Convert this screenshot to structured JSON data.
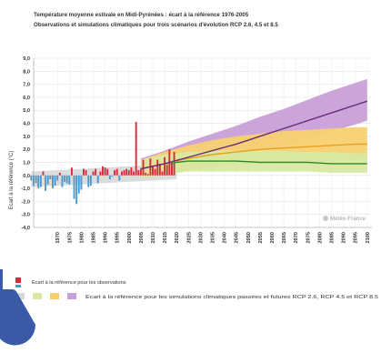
{
  "chart_data": {
    "type": "area",
    "title": "Température moyenne estivale en Midi-Pyrénées : écart à la référence 1976-2005",
    "subtitle": "Observations et simulations climatiques pour trois scénarios d'évolution RCP 2.6, 4.5 et 8.5",
    "ylabel": "Ecart à la référence (°C)",
    "xlabel": "",
    "xlim": [
      1960,
      2102
    ],
    "ylim": [
      -4,
      9
    ],
    "x_ticks": [
      1970,
      1975,
      1980,
      1985,
      1990,
      1995,
      2000,
      2005,
      2010,
      2015,
      2020,
      2025,
      2030,
      2035,
      2040,
      2045,
      2050,
      2055,
      2060,
      2065,
      2070,
      2075,
      2080,
      2085,
      2090,
      2095,
      2100
    ],
    "y_ticks": [
      "9,0",
      "8,0",
      "7,0",
      "6,0",
      "5,0",
      "4,0",
      "3,0",
      "2,0",
      "1,0",
      "0,0",
      "-1,0",
      "-2,0",
      "-3,0",
      "-4,0"
    ],
    "grid": true,
    "observations": {
      "years": [
        1959,
        1960,
        1961,
        1962,
        1963,
        1964,
        1965,
        1966,
        1967,
        1968,
        1969,
        1970,
        1971,
        1972,
        1973,
        1974,
        1975,
        1976,
        1977,
        1978,
        1979,
        1980,
        1981,
        1982,
        1983,
        1984,
        1985,
        1986,
        1987,
        1988,
        1989,
        1990,
        1991,
        1992,
        1993,
        1994,
        1995,
        1996,
        1997,
        1998,
        1999,
        2000,
        2001,
        2002,
        2003,
        2004,
        2005,
        2006,
        2007,
        2008,
        2009,
        2010,
        2011,
        2012,
        2013,
        2014,
        2015,
        2016,
        2017,
        2018,
        2019
      ],
      "values": [
        -0.4,
        -0.8,
        -0.6,
        -1.0,
        -0.9,
        0.3,
        -1.2,
        -0.7,
        -0.3,
        -1.0,
        -0.8,
        -0.4,
        0.2,
        -0.9,
        -0.5,
        -0.6,
        -0.7,
        0.6,
        -1.8,
        -2.2,
        -1.4,
        -1.1,
        0.5,
        0.4,
        -0.9,
        -0.8,
        0.3,
        0.5,
        -0.6,
        0.3,
        0.7,
        0.6,
        0.5,
        -0.3,
        -0.1,
        0.4,
        0.5,
        -0.4,
        0.3,
        0.4,
        0.5,
        0.4,
        0.6,
        0.3,
        4.1,
        0.4,
        0.5,
        1.2,
        0.2,
        0.1,
        1.3,
        0.7,
        0.5,
        1.2,
        0.9,
        0.3,
        1.4,
        0.8,
        2.0,
        1.1,
        1.8
      ]
    },
    "reference_envelope": {
      "x": [
        1959,
        2020
      ],
      "low": [
        -0.9,
        -0.3
      ],
      "high": [
        0.3,
        0.9
      ]
    },
    "series": [
      {
        "name": "RCP 2.6",
        "color": "#2a8a2a",
        "x": [
          2005,
          2015,
          2025,
          2035,
          2045,
          2055,
          2065,
          2075,
          2085,
          2095,
          2100
        ],
        "values": [
          0.5,
          0.9,
          1.1,
          1.1,
          1.1,
          1.0,
          1.0,
          1.0,
          0.9,
          0.9,
          0.9
        ],
        "low": [
          -0.2,
          0.1,
          0.3,
          0.3,
          0.3,
          0.3,
          0.3,
          0.3,
          0.2,
          0.2,
          0.2
        ],
        "high": [
          1.2,
          1.6,
          1.8,
          1.9,
          1.9,
          1.9,
          1.9,
          1.8,
          1.8,
          1.7,
          1.7
        ]
      },
      {
        "name": "RCP 4.5",
        "color": "#e8a020",
        "x": [
          2005,
          2015,
          2025,
          2035,
          2045,
          2055,
          2065,
          2075,
          2085,
          2095,
          2100
        ],
        "values": [
          0.5,
          0.9,
          1.3,
          1.6,
          1.8,
          2.0,
          2.1,
          2.2,
          2.3,
          2.4,
          2.4
        ],
        "low": [
          -0.2,
          0.1,
          0.4,
          0.6,
          0.8,
          0.9,
          1.0,
          1.1,
          1.2,
          1.2,
          1.2
        ],
        "high": [
          1.2,
          1.8,
          2.3,
          2.7,
          3.0,
          3.2,
          3.4,
          3.5,
          3.6,
          3.7,
          3.7
        ]
      },
      {
        "name": "RCP 8.5",
        "color": "#6a2a78",
        "x": [
          2005,
          2015,
          2025,
          2035,
          2045,
          2055,
          2065,
          2075,
          2085,
          2095,
          2100
        ],
        "values": [
          0.5,
          0.9,
          1.4,
          1.9,
          2.4,
          3.0,
          3.6,
          4.2,
          4.8,
          5.4,
          5.7
        ],
        "low": [
          -0.2,
          0.1,
          0.5,
          0.9,
          1.3,
          1.8,
          2.3,
          2.9,
          3.4,
          3.9,
          4.2
        ],
        "high": [
          1.3,
          1.9,
          2.6,
          3.2,
          3.8,
          4.5,
          5.1,
          5.8,
          6.5,
          7.1,
          7.4
        ]
      }
    ],
    "colors": {
      "obs_positive": "#d8283c",
      "obs_negative": "#4a9ad0",
      "reference_band": "#d8d8d8",
      "band_rcp26": "#d8e8a0",
      "band_rcp45": "#f8d070",
      "band_rcp85": "#c8a0d8"
    },
    "legend": {
      "observations": "Ecart à la référence pour les observations",
      "simulations": "Ecart à la référence pour les simulations climatiques passées et futures RCP 2.6, RCP 4.5 et RCP 8.5"
    },
    "watermark": "Météo-France"
  }
}
